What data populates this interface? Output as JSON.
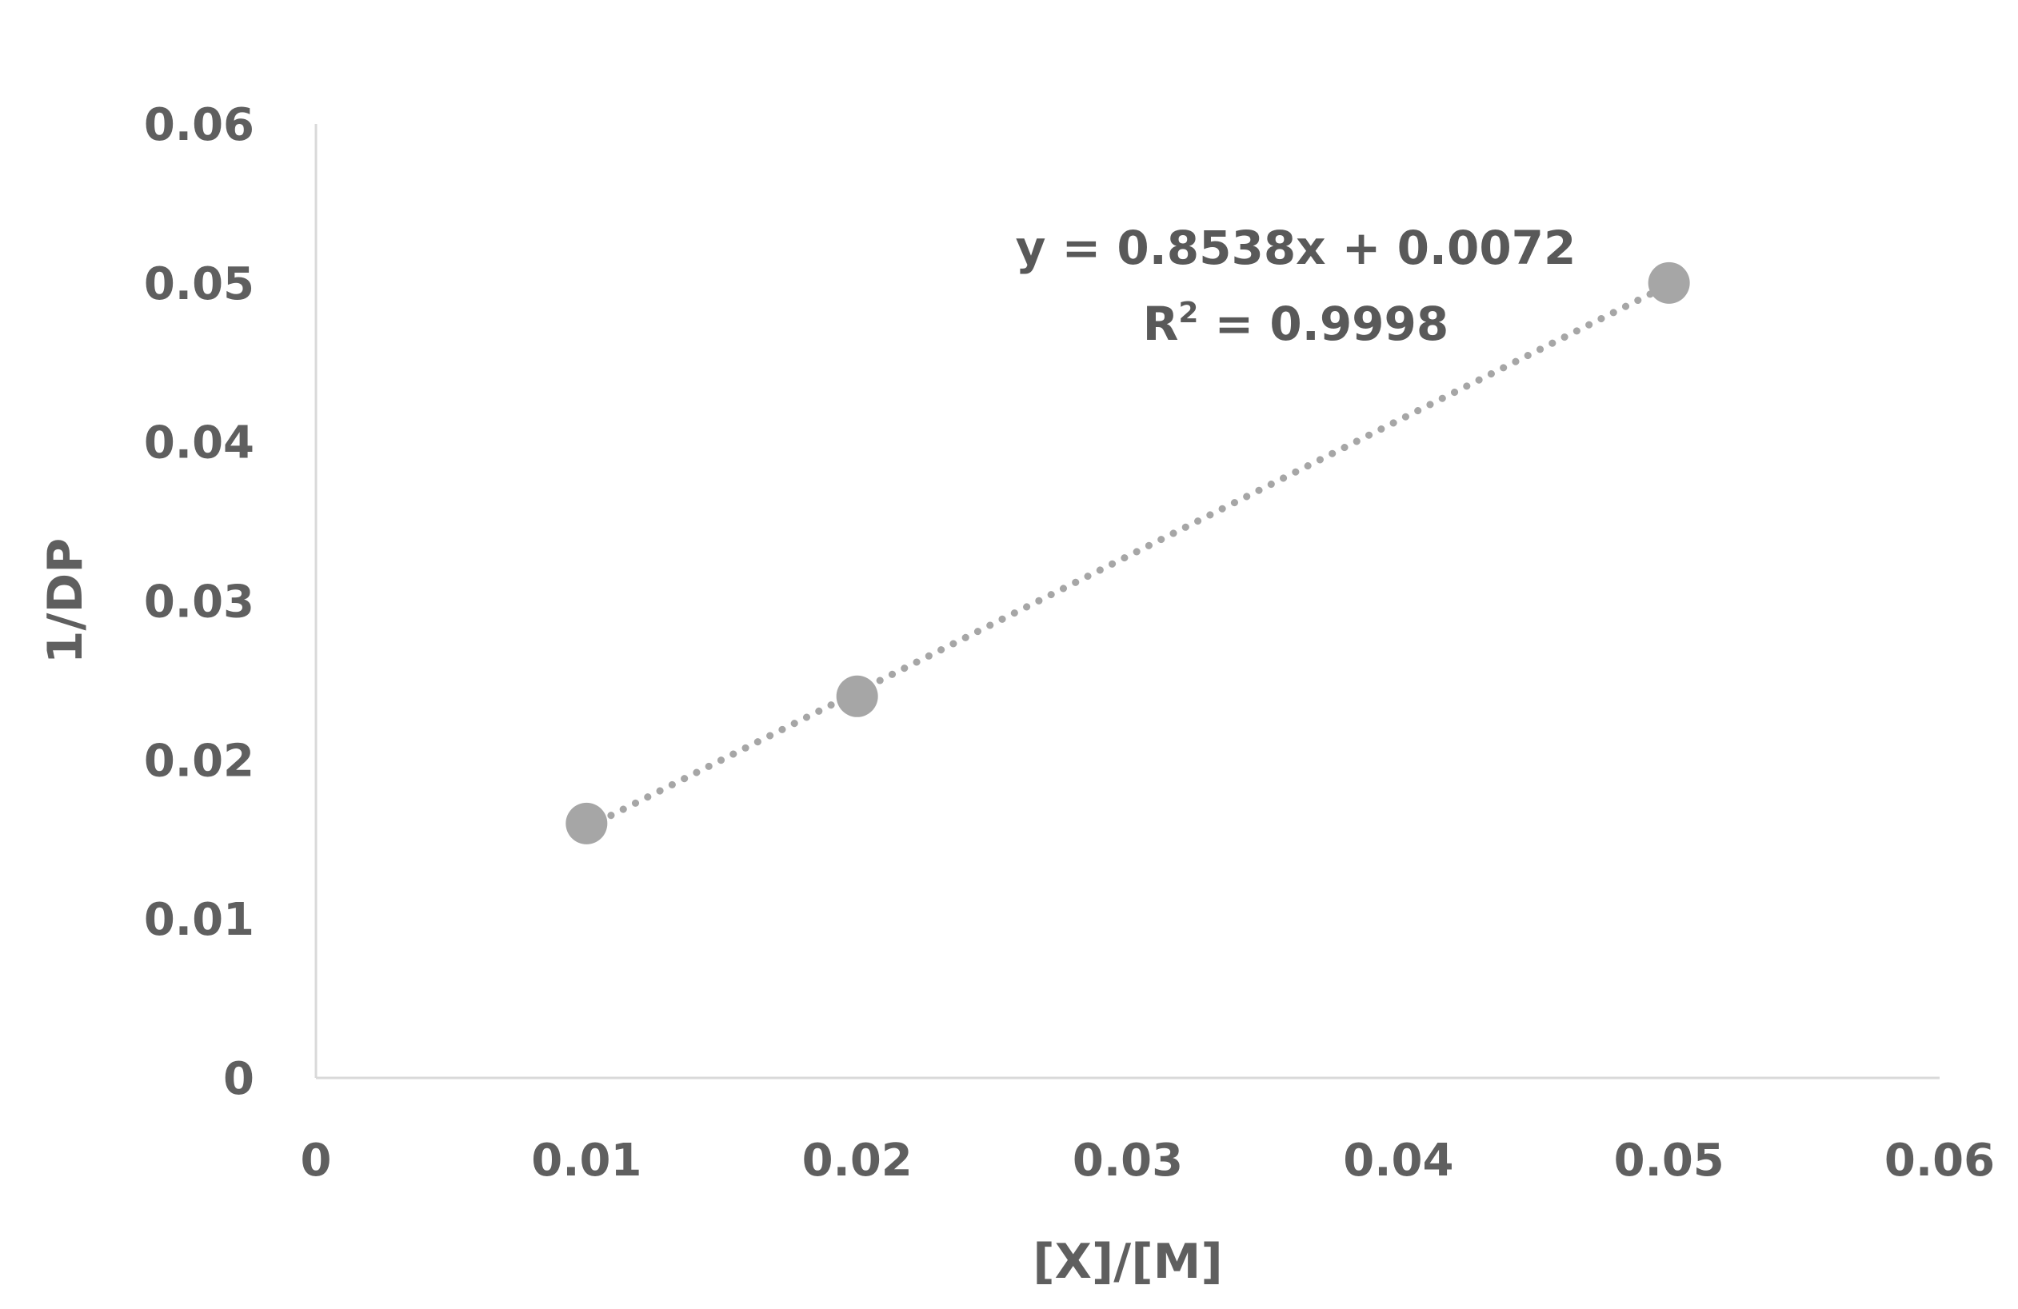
{
  "chart_data": {
    "type": "scatter",
    "xlabel": "[X]/[M]",
    "ylabel": "1/DP",
    "xlim": [
      0,
      0.06
    ],
    "ylim": [
      0,
      0.06
    ],
    "x_ticks": [
      {
        "value": 0,
        "label": "0"
      },
      {
        "value": 0.01,
        "label": "0.01"
      },
      {
        "value": 0.02,
        "label": "0.02"
      },
      {
        "value": 0.03,
        "label": "0.03"
      },
      {
        "value": 0.04,
        "label": "0.04"
      },
      {
        "value": 0.05,
        "label": "0.05"
      },
      {
        "value": 0.06,
        "label": "0.06"
      }
    ],
    "y_ticks": [
      {
        "value": 0,
        "label": "0"
      },
      {
        "value": 0.01,
        "label": "0.01"
      },
      {
        "value": 0.02,
        "label": "0.02"
      },
      {
        "value": 0.03,
        "label": "0.03"
      },
      {
        "value": 0.04,
        "label": "0.04"
      },
      {
        "value": 0.05,
        "label": "0.05"
      },
      {
        "value": 0.06,
        "label": "0.06"
      }
    ],
    "grid": false,
    "series": [
      {
        "x": [
          0.01,
          0.02,
          0.05
        ],
        "y": [
          0.016,
          0.024,
          0.05
        ]
      }
    ],
    "trendline": {
      "type": "linear",
      "slope": 0.8538,
      "intercept": 0.0072,
      "x_range": [
        0.01,
        0.05
      ],
      "style": "dotted",
      "equation_text": "y = 0.8538x + 0.0072",
      "r2_prefix": "R",
      "r2_superscript": "2",
      "r2_suffix": " = 0.9998"
    },
    "colors": {
      "marker": "#a6a6a6",
      "trendline": "#a6a6a6",
      "text": "#5f5f5f"
    }
  }
}
